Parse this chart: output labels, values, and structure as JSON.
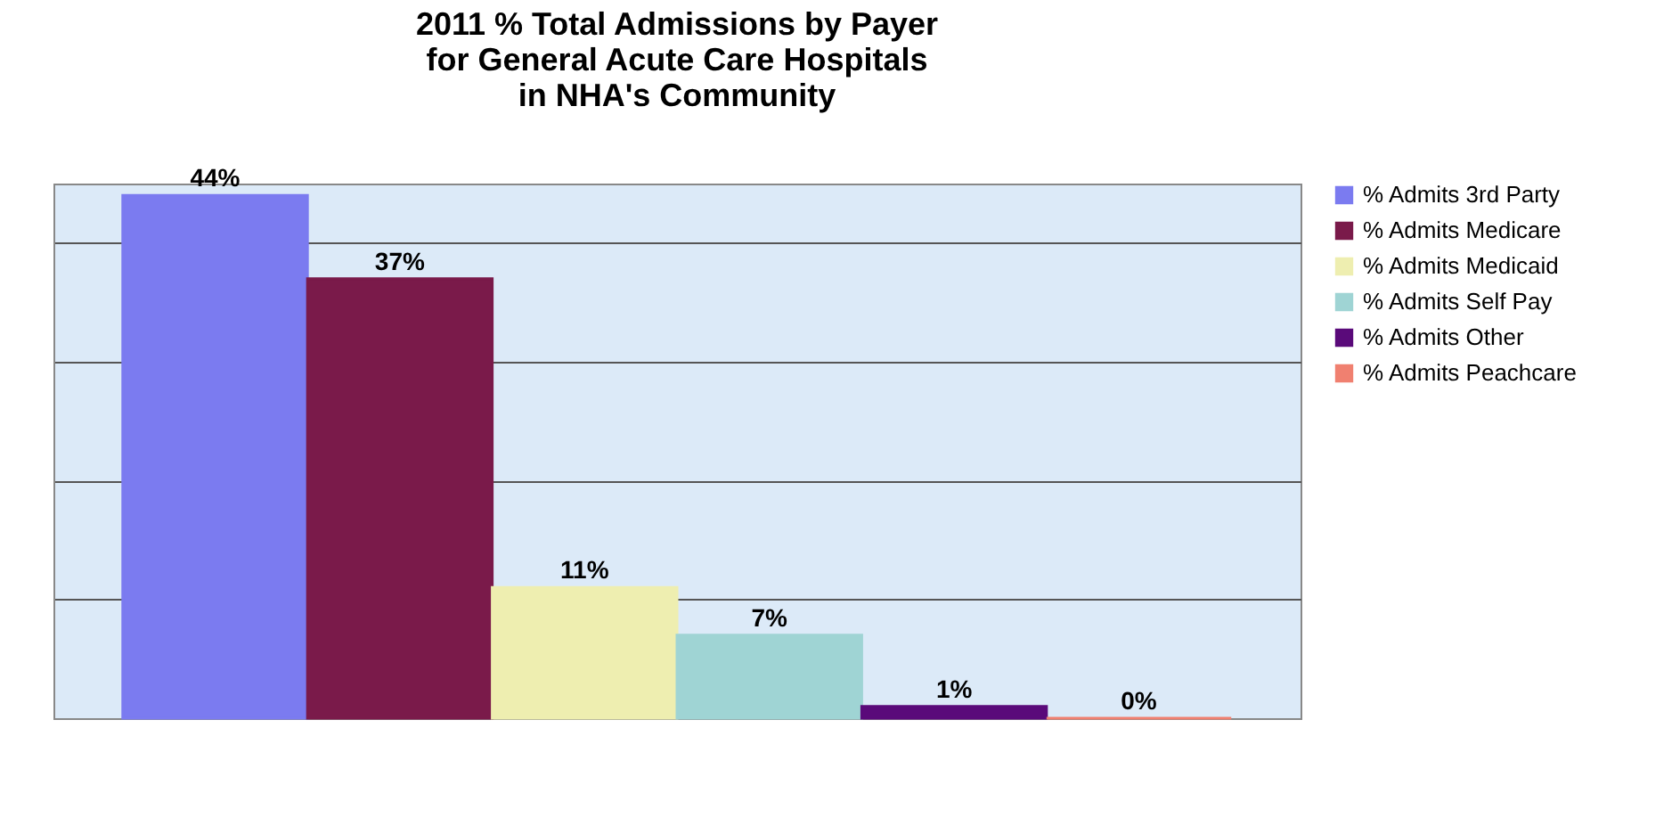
{
  "chart_data": {
    "type": "bar",
    "title": "2011 % Total Admissions by Payer\nfor General Acute Care Hospitals\nin NHA's Community",
    "categories": [
      null
    ],
    "series": [
      {
        "name": "% Admits 3rd Party",
        "color": "#7b7bf0",
        "values": [
          44
        ],
        "value_labels": [
          "44%"
        ]
      },
      {
        "name": "% Admits Medicare",
        "color": "#7a1a4a",
        "values": [
          37
        ],
        "value_labels": [
          "37%"
        ]
      },
      {
        "name": "% Admits Medicaid",
        "color": "#eeeeb0",
        "values": [
          11
        ],
        "value_labels": [
          "11%"
        ]
      },
      {
        "name": "% Admits Self Pay",
        "color": "#9fd4d4",
        "values": [
          7
        ],
        "value_labels": [
          "7%"
        ]
      },
      {
        "name": "% Admits Other",
        "color": "#5a0a7a",
        "values": [
          1
        ],
        "value_labels": [
          "1%"
        ]
      },
      {
        "name": "% Admits Peachcare",
        "color": "#f08070",
        "values": [
          0
        ],
        "value_labels": [
          "0%"
        ]
      }
    ],
    "tick_labels": false,
    "grid": "y",
    "legend": "right"
  }
}
